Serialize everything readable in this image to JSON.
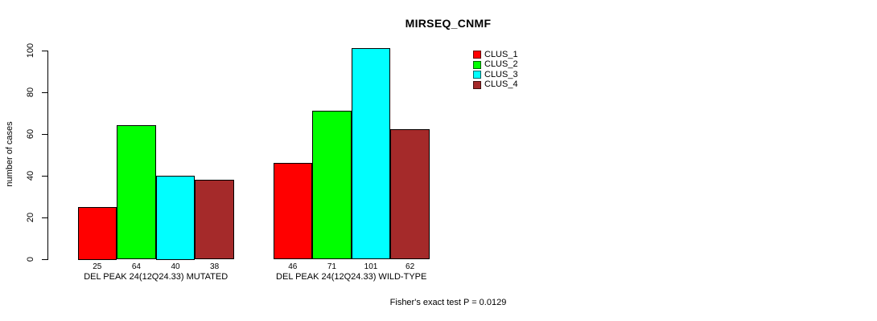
{
  "chart_data": {
    "type": "bar",
    "title": "MIRSEQ_CNMF",
    "xlabel": "",
    "ylabel": "number of cases",
    "ylim": [
      0,
      100
    ],
    "yticks": [
      0,
      20,
      40,
      60,
      80,
      100
    ],
    "grid": false,
    "categories": [
      "DEL PEAK 24(12Q24.33) MUTATED",
      "DEL PEAK 24(12Q24.33) WILD-TYPE"
    ],
    "series": [
      {
        "name": "CLUS_1",
        "color": "#ff0000",
        "values": [
          25,
          46
        ]
      },
      {
        "name": "CLUS_2",
        "color": "#00ff00",
        "values": [
          64,
          71
        ]
      },
      {
        "name": "CLUS_3",
        "color": "#00ffff",
        "values": [
          40,
          101
        ]
      },
      {
        "name": "CLUS_4",
        "color": "#a52a2a",
        "values": [
          38,
          62
        ]
      }
    ],
    "show_bar_values": true,
    "bar_value_labels": [
      [
        25,
        64,
        40,
        38
      ],
      [
        46,
        71,
        101,
        62
      ]
    ],
    "legend": {
      "position": "top-right",
      "entries": [
        "CLUS_1",
        "CLUS_2",
        "CLUS_3",
        "CLUS_4"
      ]
    },
    "annotation": "Fisher's exact test P = 0.0129",
    "bar_border_color": "#000000",
    "background_color": "#ffffff"
  }
}
